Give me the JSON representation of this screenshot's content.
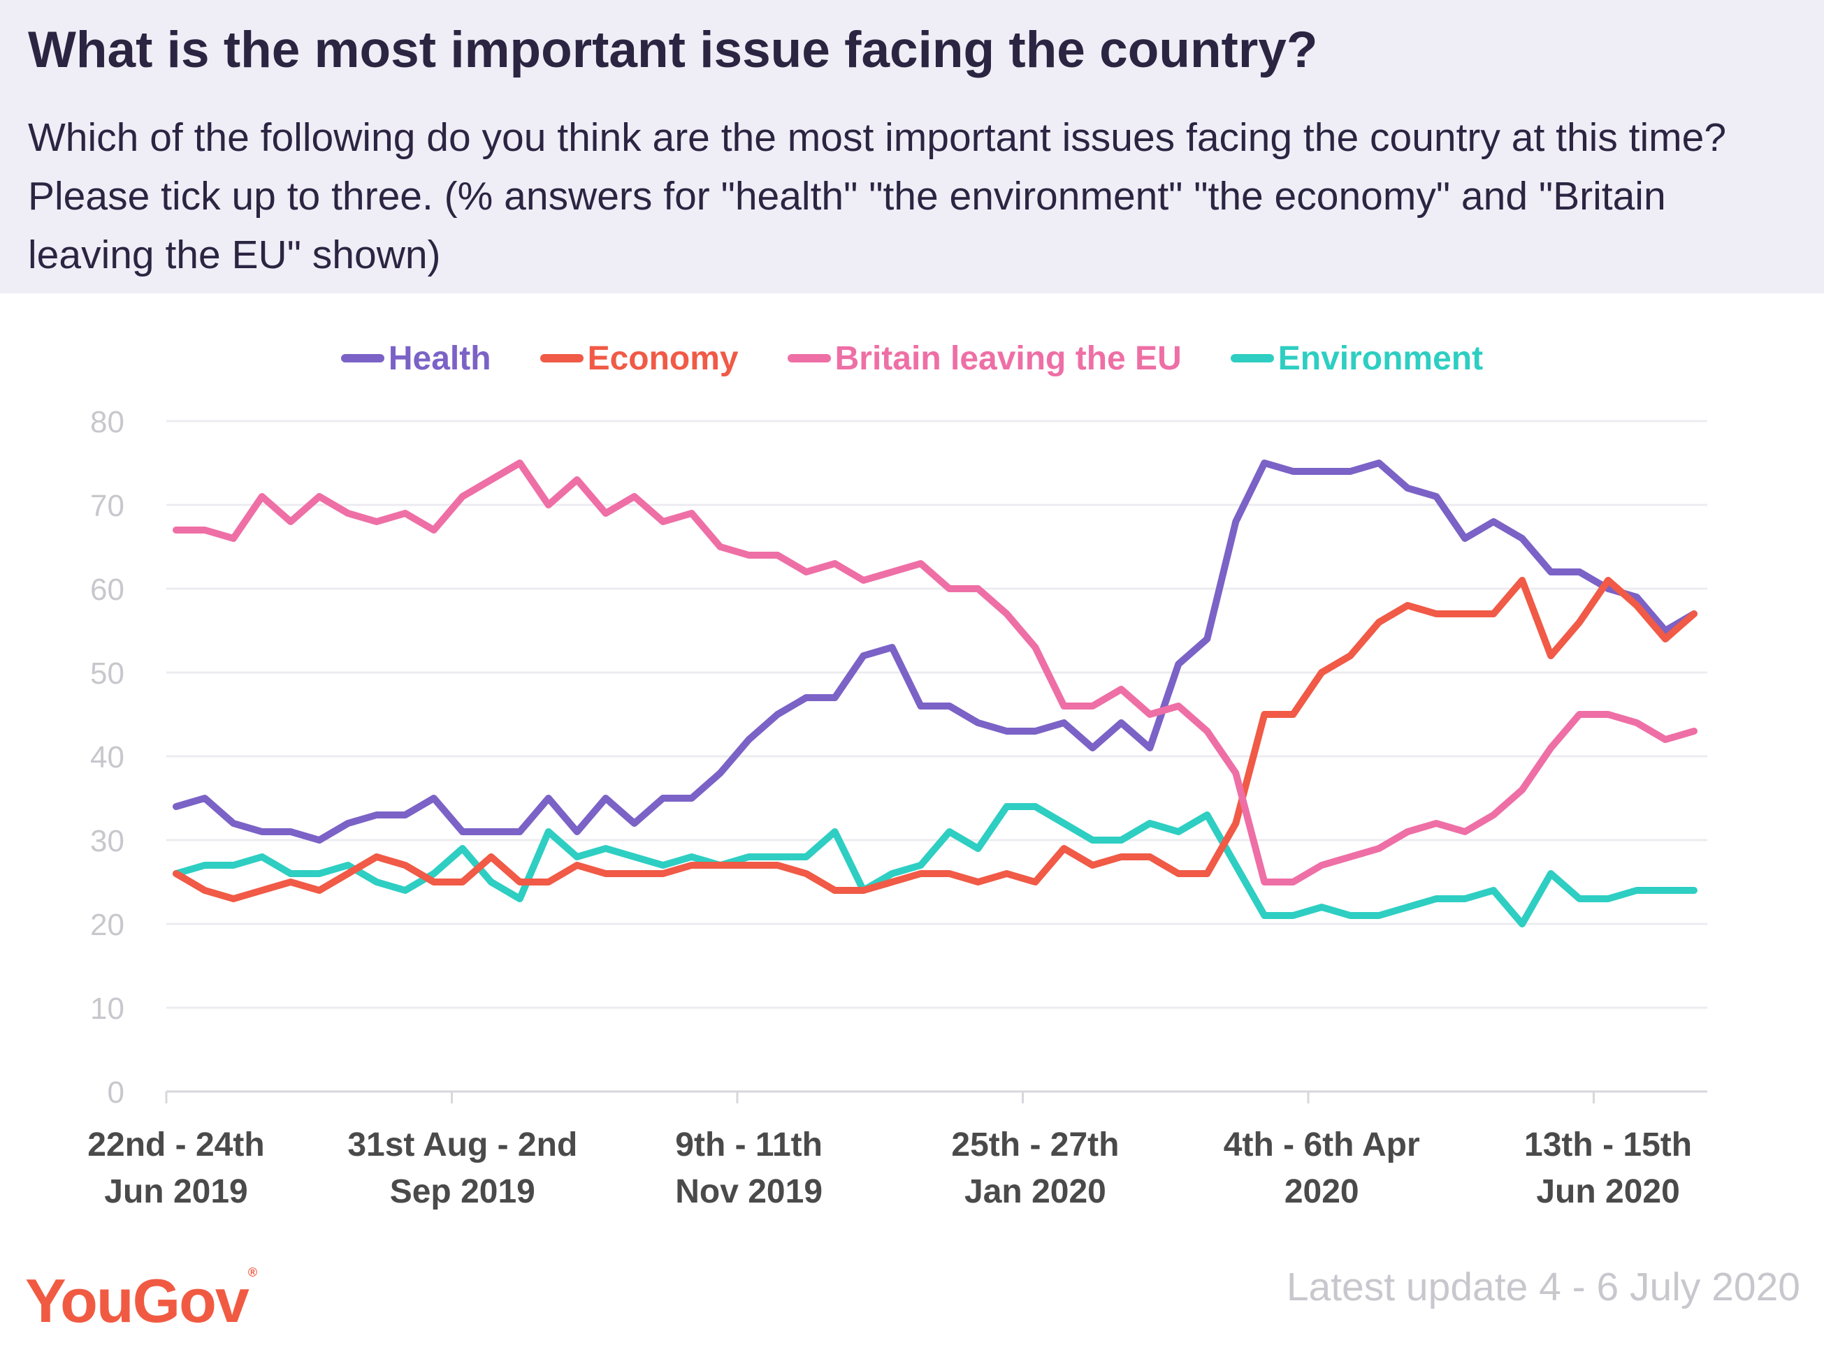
{
  "title": "What is the most important issue facing the country?",
  "subtitle": "Which of the following do you think are the most important issues facing the country at this time? Please tick up to three. (% answers for \"health\" \"the environment\" \"the economy\" and \"Britain leaving the EU\" shown)",
  "footer": {
    "logo": "YouGov",
    "note": "Latest update 4 - 6 July 2020"
  },
  "chart_data": {
    "type": "line",
    "ylim": [
      0,
      80
    ],
    "yticks": [
      0,
      10,
      20,
      30,
      40,
      50,
      60,
      70,
      80
    ],
    "grid": true,
    "legend_position": "top-center",
    "x_tick_labels": [
      {
        "index": 0,
        "line1": "22nd - 24th",
        "line2": "Jun 2019"
      },
      {
        "index": 10,
        "line1": "31st Aug - 2nd",
        "line2": "Sep 2019"
      },
      {
        "index": 20,
        "line1": "9th - 11th",
        "line2": "Nov 2019"
      },
      {
        "index": 30,
        "line1": "25th - 27th",
        "line2": "Jan 2020"
      },
      {
        "index": 40,
        "line1": "4th - 6th Apr",
        "line2": "2020"
      },
      {
        "index": 50,
        "line1": "13th - 15th",
        "line2": "Jun 2020"
      }
    ],
    "series": [
      {
        "name": "Health",
        "color": "#7b62c6",
        "values": [
          34,
          35,
          32,
          31,
          31,
          30,
          32,
          33,
          33,
          35,
          31,
          31,
          31,
          35,
          31,
          35,
          32,
          35,
          35,
          38,
          42,
          45,
          47,
          47,
          52,
          53,
          46,
          46,
          44,
          43,
          43,
          44,
          41,
          44,
          41,
          51,
          54,
          68,
          75,
          74,
          74,
          74,
          75,
          72,
          71,
          66,
          68,
          66,
          62,
          62,
          60,
          59,
          55,
          57
        ]
      },
      {
        "name": "Economy",
        "color": "#f05a46",
        "values": [
          26,
          24,
          23,
          24,
          25,
          24,
          26,
          28,
          27,
          25,
          25,
          28,
          25,
          25,
          27,
          26,
          26,
          26,
          27,
          27,
          27,
          27,
          26,
          24,
          24,
          25,
          26,
          26,
          25,
          26,
          25,
          29,
          27,
          28,
          28,
          26,
          26,
          32,
          45,
          45,
          50,
          52,
          56,
          58,
          57,
          57,
          57,
          61,
          52,
          56,
          61,
          58,
          54,
          57
        ]
      },
      {
        "name": "Britain leaving the EU",
        "color": "#ee6fa5",
        "values": [
          67,
          67,
          66,
          71,
          68,
          71,
          69,
          68,
          69,
          67,
          71,
          73,
          75,
          70,
          73,
          69,
          71,
          68,
          69,
          65,
          64,
          64,
          62,
          63,
          61,
          62,
          63,
          60,
          60,
          57,
          53,
          46,
          46,
          48,
          45,
          46,
          43,
          38,
          25,
          25,
          27,
          28,
          29,
          31,
          32,
          31,
          33,
          36,
          41,
          45,
          45,
          44,
          42,
          43
        ]
      },
      {
        "name": "Environment",
        "color": "#2ecec2",
        "values": [
          26,
          27,
          27,
          28,
          26,
          26,
          27,
          25,
          24,
          26,
          29,
          25,
          23,
          31,
          28,
          29,
          28,
          27,
          28,
          27,
          28,
          28,
          28,
          31,
          24,
          26,
          27,
          31,
          29,
          34,
          34,
          32,
          30,
          30,
          32,
          31,
          33,
          27,
          21,
          21,
          22,
          21,
          21,
          22,
          23,
          23,
          24,
          20,
          26,
          23,
          23,
          24,
          24,
          24
        ]
      }
    ]
  }
}
